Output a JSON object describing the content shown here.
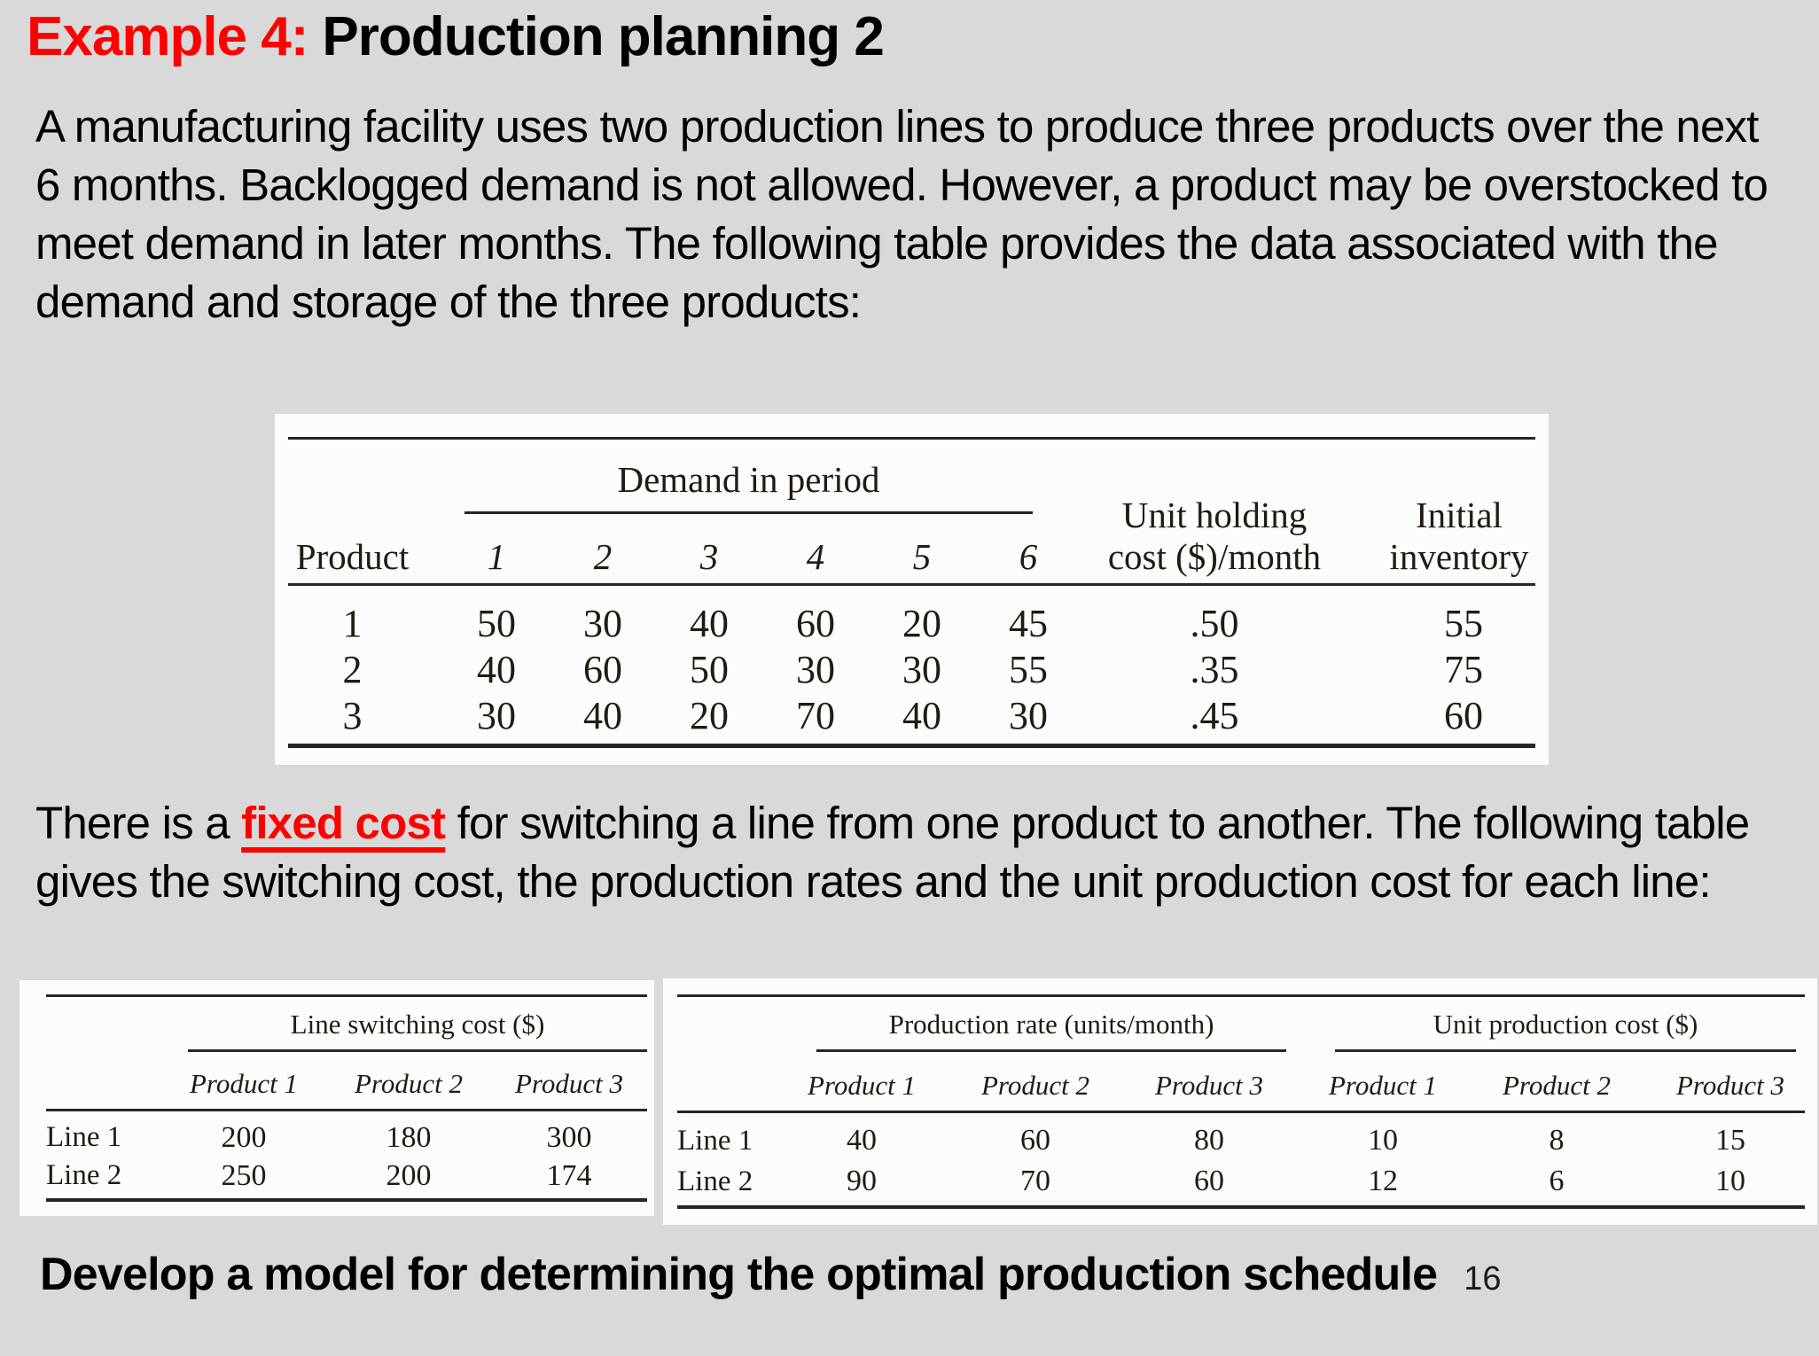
{
  "colors": {
    "background": "#d9d9d9",
    "accent_red": "#fe0000",
    "table_background": "#fcfcfa",
    "text": "#000000"
  },
  "slide": {
    "title_prefix": "Example 4:",
    "title_rest": "Production planning 2",
    "paragraph1": "A manufacturing facility uses two production lines to produce three products over the next 6 months. Backlogged demand is not allowed. However, a product may be overstocked to meet demand in later months. The following table provides the data associated with the demand and storage of the three products:",
    "paragraph2_pre": "There is a ",
    "paragraph2_highlight": "fixed cost",
    "paragraph2_post": " for switching a line from one product to another. The following table gives the switching cost, the production rates and the unit production cost for each line:",
    "footer": "Develop a model for determining the optimal production schedule",
    "page_number": "16"
  },
  "demand_table": {
    "group_header": "Demand in period",
    "product_col_header": "Product",
    "period_headers": [
      "1",
      "2",
      "3",
      "4",
      "5",
      "6"
    ],
    "holding_header_line1": "Unit holding",
    "holding_header_line2": "cost ($)/month",
    "inventory_header_line1": "Initial",
    "inventory_header_line2": "inventory",
    "rows": [
      {
        "product": "1",
        "demand": [
          "50",
          "30",
          "40",
          "60",
          "20",
          "45"
        ],
        "holding": ".50",
        "inventory": "55"
      },
      {
        "product": "2",
        "demand": [
          "40",
          "60",
          "50",
          "30",
          "30",
          "55"
        ],
        "holding": ".35",
        "inventory": "75"
      },
      {
        "product": "3",
        "demand": [
          "30",
          "40",
          "20",
          "70",
          "40",
          "30"
        ],
        "holding": ".45",
        "inventory": "60"
      }
    ]
  },
  "switching_table": {
    "group_header": "Line switching cost ($)",
    "product_headers": [
      "Product 1",
      "Product 2",
      "Product 3"
    ],
    "rows": [
      {
        "line": "Line 1",
        "values": [
          "200",
          "180",
          "300"
        ]
      },
      {
        "line": "Line 2",
        "values": [
          "250",
          "200",
          "174"
        ]
      }
    ]
  },
  "rate_cost_table": {
    "group_header_rate": "Production rate (units/month)",
    "group_header_cost": "Unit production cost ($)",
    "product_headers_rate": [
      "Product 1",
      "Product 2",
      "Product 3"
    ],
    "product_headers_cost": [
      "Product 1",
      "Product 2",
      "Product 3"
    ],
    "rows": [
      {
        "line": "Line 1",
        "rate": [
          "40",
          "60",
          "80"
        ],
        "cost": [
          "10",
          "8",
          "15"
        ]
      },
      {
        "line": "Line 2",
        "rate": [
          "90",
          "70",
          "60"
        ],
        "cost": [
          "12",
          "6",
          "10"
        ]
      }
    ]
  }
}
